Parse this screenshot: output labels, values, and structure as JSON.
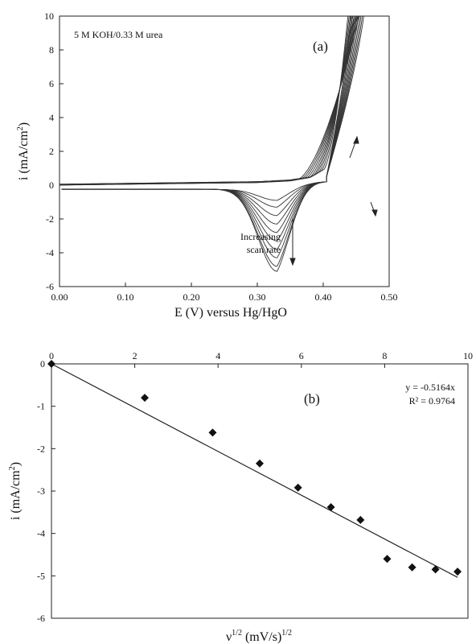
{
  "chart_data": [
    {
      "panel": "(a)",
      "type": "line",
      "annotation": "5 M KOH/0.33 M urea",
      "scan_label_1": "Increasing",
      "scan_label_2": "scan rate",
      "xlabel": "E (V) versus Hg/HgO",
      "ylabel_main": "i (mA/cm",
      "ylabel_sup": "2",
      "ylabel_close": ")",
      "xlim": [
        0.0,
        0.5
      ],
      "ylim": [
        -6,
        10
      ],
      "x_ticks": [
        "0.00",
        "0.10",
        "0.20",
        "0.30",
        "0.40",
        "0.50"
      ],
      "y_ticks": [
        "-6",
        "-4",
        "-2",
        "0",
        "2",
        "4",
        "6",
        "8",
        "10"
      ],
      "n_scans": 10,
      "forward_scan_base": {
        "x": [
          0.0,
          0.1,
          0.2,
          0.3,
          0.35,
          0.38,
          0.4
        ],
        "y": [
          0.0,
          0.05,
          0.1,
          0.15,
          0.25,
          0.45,
          0.9
        ]
      },
      "anodic_rise_onset_range": [
        0.36,
        0.4
      ],
      "anodic_rise_end_range": [
        0.44,
        0.46
      ],
      "reverse_peak_potential": 0.33,
      "reverse_peak_currents": [
        -0.9,
        -1.3,
        -1.8,
        -2.3,
        -2.8,
        -3.3,
        -3.8,
        -4.3,
        -4.8,
        -5.1
      ]
    },
    {
      "panel": "(b)",
      "type": "scatter",
      "xlabel_main": "ν",
      "xlabel_sup1": "1/2",
      "xlabel_mid": " (mV/s)",
      "xlabel_sup2": "1/2",
      "ylabel_main": "i (mA/cm",
      "ylabel_sup": "2",
      "ylabel_close": ")",
      "xlim": [
        0,
        10
      ],
      "ylim": [
        -6,
        0
      ],
      "x_ticks": [
        "0",
        "2",
        "4",
        "6",
        "8",
        "10"
      ],
      "y_ticks": [
        "0",
        "-1",
        "-2",
        "-3",
        "-4",
        "-5",
        "-6"
      ],
      "points": {
        "x": [
          0,
          2.24,
          3.87,
          5.0,
          5.92,
          6.71,
          7.42,
          8.06,
          8.66,
          9.22,
          9.75
        ],
        "y": [
          0,
          -0.8,
          -1.62,
          -2.35,
          -2.92,
          -3.38,
          -3.68,
          -4.6,
          -4.8,
          -4.85,
          -4.9
        ]
      },
      "trendline": {
        "slope": -0.5164,
        "intercept": 0,
        "x_range": [
          0,
          9.75
        ]
      },
      "equation": "y = -0.5164x",
      "r2": "R² = 0.9764"
    }
  ]
}
